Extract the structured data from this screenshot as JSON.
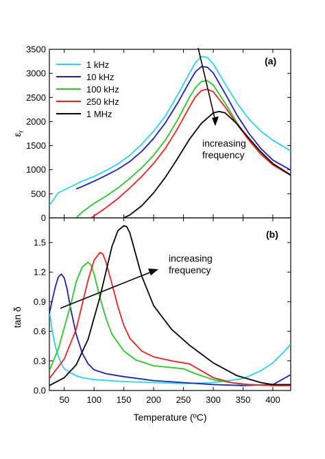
{
  "chart_data": [
    {
      "panel": "(a)",
      "type": "line",
      "xlabel": "Temperature (ºC)",
      "ylabel": "ε",
      "ylabel_sub": "r",
      "xlim": [
        25,
        430
      ],
      "ylim": [
        0,
        3500
      ],
      "x_ticks": [
        50,
        100,
        150,
        200,
        250,
        300,
        350,
        400
      ],
      "y_ticks": [
        0,
        500,
        1000,
        1500,
        2000,
        2500,
        3000,
        3500
      ],
      "legend_position": "top-left",
      "annotations": [
        {
          "text": "increasing"
        },
        {
          "text": "frequency"
        }
      ],
      "series": [
        {
          "name": "1 kHz",
          "color": "#22d8e8",
          "x": [
            25,
            40,
            60,
            80,
            100,
            120,
            140,
            160,
            180,
            200,
            220,
            240,
            260,
            270,
            280,
            290,
            300,
            320,
            340,
            360,
            380,
            400,
            430
          ],
          "y": [
            260,
            520,
            640,
            760,
            860,
            980,
            1120,
            1300,
            1530,
            1800,
            2120,
            2550,
            3000,
            3220,
            3350,
            3330,
            3200,
            2780,
            2380,
            2050,
            1800,
            1610,
            1390
          ]
        },
        {
          "name": "10 kHz",
          "color": "#1a1acc",
          "x": [
            70,
            80,
            100,
            120,
            140,
            160,
            180,
            200,
            220,
            240,
            260,
            270,
            280,
            290,
            300,
            320,
            340,
            360,
            380,
            400,
            430
          ],
          "y": [
            600,
            650,
            760,
            880,
            1010,
            1170,
            1380,
            1650,
            1980,
            2380,
            2820,
            3030,
            3140,
            3130,
            3010,
            2580,
            2130,
            1750,
            1440,
            1200,
            990
          ]
        },
        {
          "name": "100 kHz",
          "color": "#22cc22",
          "x": [
            70,
            80,
            100,
            120,
            140,
            160,
            180,
            200,
            220,
            240,
            260,
            270,
            280,
            290,
            300,
            320,
            340,
            360,
            380,
            400,
            430
          ],
          "y": [
            0,
            120,
            300,
            450,
            620,
            820,
            1040,
            1300,
            1620,
            2030,
            2500,
            2700,
            2830,
            2850,
            2760,
            2380,
            1970,
            1620,
            1330,
            1100,
            880
          ]
        },
        {
          "name": "250 kHz",
          "color": "#ff1a1a",
          "x": [
            95,
            100,
            120,
            140,
            160,
            180,
            200,
            220,
            240,
            260,
            270,
            280,
            290,
            300,
            320,
            340,
            360,
            380,
            400,
            430
          ],
          "y": [
            0,
            40,
            210,
            400,
            620,
            860,
            1130,
            1450,
            1850,
            2300,
            2510,
            2640,
            2670,
            2620,
            2300,
            1940,
            1610,
            1320,
            1100,
            880
          ]
        },
        {
          "name": "1 MHz",
          "color": "#000000",
          "x": [
            150,
            160,
            180,
            200,
            220,
            240,
            260,
            280,
            300,
            310,
            320,
            340,
            360,
            380,
            400,
            430
          ],
          "y": [
            0,
            60,
            250,
            520,
            850,
            1230,
            1630,
            1960,
            2180,
            2210,
            2180,
            1950,
            1650,
            1370,
            1130,
            890
          ]
        }
      ]
    },
    {
      "panel": "(b)",
      "type": "line",
      "xlabel": "Temperature (ºC)",
      "ylabel": "tan δ",
      "xlim": [
        25,
        430
      ],
      "ylim": [
        0,
        1.75
      ],
      "x_ticks": [
        50,
        100,
        150,
        200,
        250,
        300,
        350,
        400
      ],
      "y_ticks": [
        0.0,
        0.3,
        0.6,
        0.9,
        1.2,
        1.5
      ],
      "annotations": [
        {
          "text": "increasing"
        },
        {
          "text": "frequency"
        }
      ],
      "series": [
        {
          "name": "1 kHz",
          "color": "#22d8e8",
          "x": [
            25,
            30,
            35,
            40,
            45,
            50,
            60,
            70,
            80,
            100,
            150,
            200,
            250,
            300,
            350,
            380,
            400,
            420,
            430
          ],
          "y": [
            0.8,
            0.6,
            0.45,
            0.35,
            0.27,
            0.22,
            0.18,
            0.15,
            0.13,
            0.11,
            0.09,
            0.08,
            0.07,
            0.08,
            0.12,
            0.2,
            0.28,
            0.4,
            0.47
          ]
        },
        {
          "name": "10 kHz",
          "color": "#1a1acc",
          "x": [
            25,
            30,
            35,
            40,
            45,
            50,
            55,
            60,
            70,
            80,
            90,
            100,
            120,
            150,
            200,
            250,
            300,
            350,
            400,
            430
          ],
          "y": [
            0.78,
            0.92,
            1.05,
            1.15,
            1.18,
            1.14,
            1.02,
            0.85,
            0.57,
            0.38,
            0.27,
            0.21,
            0.17,
            0.14,
            0.1,
            0.08,
            0.06,
            0.05,
            0.06,
            0.16
          ]
        },
        {
          "name": "100 kHz",
          "color": "#22cc22",
          "x": [
            25,
            40,
            60,
            70,
            80,
            90,
            95,
            100,
            110,
            120,
            130,
            150,
            170,
            200,
            250,
            270,
            300,
            350,
            400,
            430
          ],
          "y": [
            0.2,
            0.42,
            0.85,
            1.1,
            1.25,
            1.3,
            1.27,
            1.18,
            0.94,
            0.73,
            0.57,
            0.4,
            0.31,
            0.25,
            0.22,
            0.17,
            0.11,
            0.06,
            0.05,
            0.05
          ]
        },
        {
          "name": "250 kHz",
          "color": "#ff1a1a",
          "x": [
            25,
            50,
            70,
            90,
            100,
            110,
            115,
            120,
            130,
            140,
            150,
            160,
            180,
            200,
            230,
            260,
            280,
            300,
            330,
            360,
            400,
            430
          ],
          "y": [
            0.12,
            0.32,
            0.62,
            1.12,
            1.32,
            1.4,
            1.38,
            1.3,
            1.08,
            0.85,
            0.66,
            0.53,
            0.4,
            0.34,
            0.3,
            0.27,
            0.2,
            0.13,
            0.08,
            0.06,
            0.05,
            0.05
          ]
        },
        {
          "name": "1 MHz",
          "color": "#000000",
          "x": [
            25,
            50,
            70,
            90,
            110,
            130,
            140,
            150,
            155,
            160,
            170,
            180,
            200,
            230,
            260,
            300,
            340,
            380,
            400,
            430
          ],
          "y": [
            0.05,
            0.13,
            0.26,
            0.52,
            0.95,
            1.46,
            1.62,
            1.67,
            1.66,
            1.6,
            1.38,
            1.16,
            0.86,
            0.62,
            0.46,
            0.28,
            0.15,
            0.08,
            0.06,
            0.06
          ]
        }
      ]
    }
  ]
}
